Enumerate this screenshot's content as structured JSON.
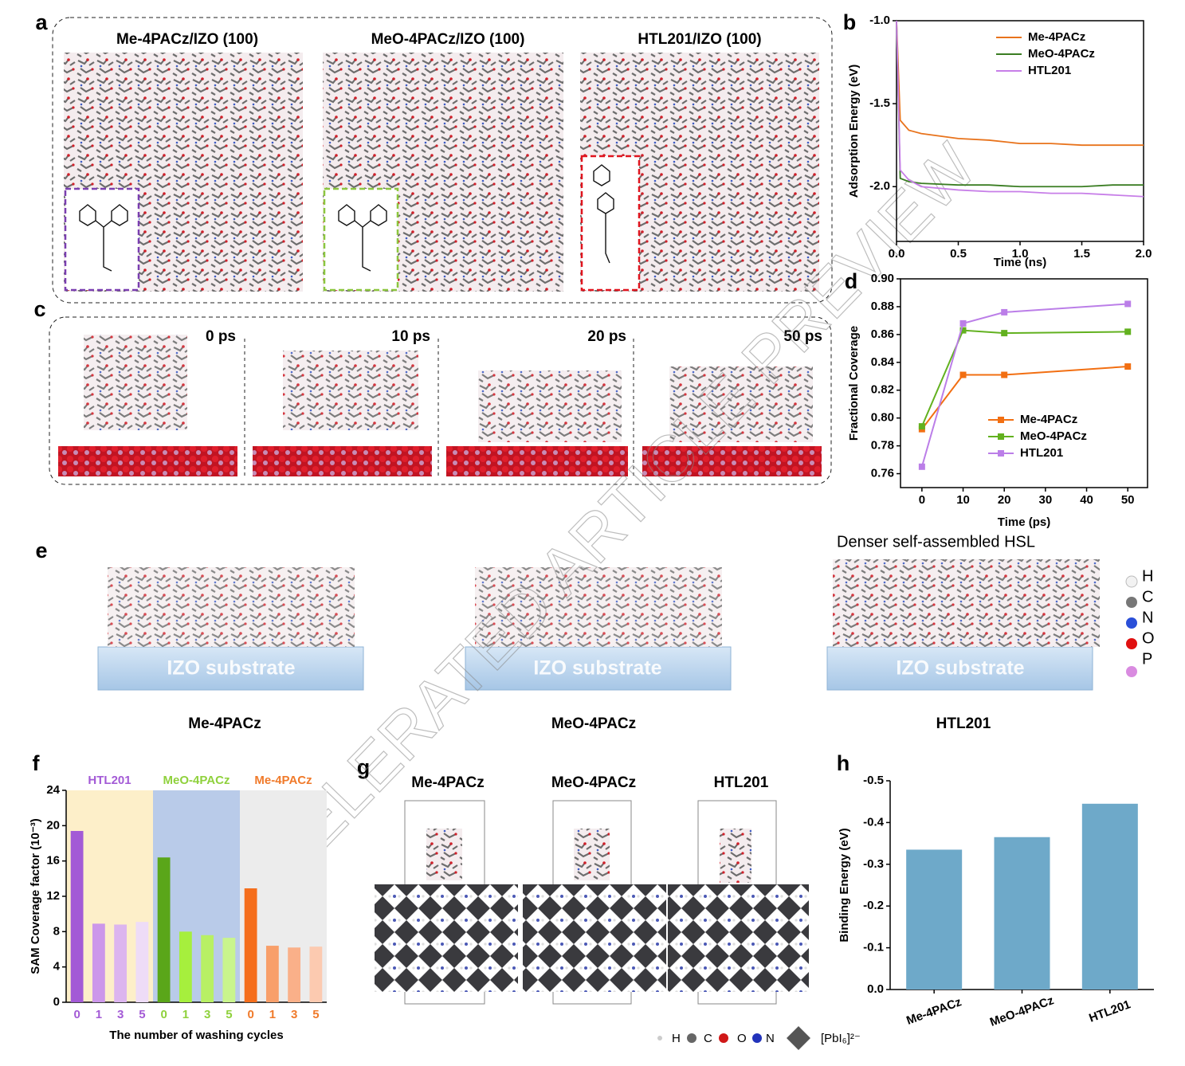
{
  "panel_labels": [
    "a",
    "b",
    "c",
    "d",
    "e",
    "f",
    "g",
    "h"
  ],
  "panel_a": {
    "titles": [
      "Me-4PACz/IZO (100)",
      "MeO-4PACz/IZO (100)",
      "HTL201/IZO (100)"
    ]
  },
  "panel_c": {
    "times": [
      "0 ps",
      "10 ps",
      "20 ps",
      "50 ps"
    ]
  },
  "panel_e": {
    "caption": "Denser self-assembled HSL",
    "substrates": [
      "IZO substrate",
      "IZO substrate",
      "IZO substrate"
    ],
    "names": [
      "Me-4PACz",
      "MeO-4PACz",
      "HTL201"
    ],
    "elements": [
      "H",
      "C",
      "N",
      "O",
      "P"
    ]
  },
  "panel_g": {
    "titles": [
      "Me-4PACz",
      "MeO-4PACz",
      "HTL201"
    ],
    "legend": [
      "H",
      "C",
      "O",
      "N",
      "[PbI₆]²⁻"
    ]
  },
  "watermark": "ACCELERATED ARTICLE PREVIEW",
  "chart_data": [
    {
      "type": "line",
      "xlabel": "Time (ns)",
      "ylabel": "Adsorption Energy (eV)",
      "x": [
        0,
        0.03,
        0.1,
        0.2,
        0.5,
        0.75,
        1.0,
        1.25,
        1.5,
        1.75,
        2.0
      ],
      "series": [
        {
          "name": "Me-4PACz",
          "color": "#e8731c",
          "values": [
            -1.0,
            -1.6,
            -1.66,
            -1.68,
            -1.71,
            -1.72,
            -1.74,
            -1.74,
            -1.75,
            -1.75,
            -1.75
          ]
        },
        {
          "name": "MeO-4PACz",
          "color": "#3a7d22",
          "values": [
            -1.0,
            -1.95,
            -1.97,
            -1.98,
            -1.99,
            -1.99,
            -2.0,
            -2.0,
            -2.0,
            -1.99,
            -1.99
          ]
        },
        {
          "name": "HTL201",
          "color": "#c77ee8",
          "values": [
            -1.0,
            -1.9,
            -1.96,
            -2.0,
            -2.02,
            -2.03,
            -2.03,
            -2.04,
            -2.04,
            -2.05,
            -2.06
          ]
        }
      ],
      "xlim": [
        0,
        2
      ],
      "ylim": [
        -2.33,
        -1.0
      ],
      "xticks": [
        {
          "value": 0,
          "label": "0.0"
        },
        0.5,
        {
          "value": 1,
          "label": "1.0"
        },
        1.5,
        {
          "value": 2,
          "label": "2.0"
        }
      ],
      "yticks": [
        {
          "value": -1,
          "label": "-1.0"
        },
        -1.5,
        {
          "value": -2,
          "label": "-2.0"
        }
      ],
      "legend": "top-right",
      "markers": false
    },
    {
      "type": "line",
      "xlabel": "Time (ps)",
      "ylabel": "Fractional Coverage",
      "x": [
        0,
        10,
        20,
        50
      ],
      "series": [
        {
          "name": "Me-4PACz",
          "color": "#f26f12",
          "values": [
            0.792,
            0.831,
            0.831,
            0.837
          ]
        },
        {
          "name": "MeO-4PACz",
          "color": "#62b11f",
          "values": [
            0.794,
            0.863,
            0.861,
            0.862
          ]
        },
        {
          "name": "HTL201",
          "color": "#bb7ee8",
          "values": [
            0.765,
            0.868,
            0.876,
            0.882
          ]
        }
      ],
      "xlim": [
        -5.2,
        54.8
      ],
      "ylim": [
        0.75,
        0.9
      ],
      "xticks": [
        0,
        10,
        20,
        30,
        40,
        50
      ],
      "yticks": [
        0.76,
        0.78,
        {
          "value": 0.8,
          "label": "0.80"
        },
        0.82,
        0.84,
        0.86,
        0.88,
        {
          "value": 0.9,
          "label": "0.90"
        }
      ],
      "legend": "bottom-right",
      "markers": true
    },
    {
      "type": "grouped_bar",
      "xlabel": "The number of washing cycles",
      "ylabel": "SAM Coverage factor (10⁻³)",
      "ylim": [
        0,
        24
      ],
      "yticks": [
        0,
        4,
        8,
        12,
        16,
        20,
        24
      ],
      "groups": [
        {
          "name": "HTL201",
          "label_color": "#a35ad6",
          "background": "#fdefc9",
          "categories": [
            "0",
            "1",
            "3",
            "5"
          ],
          "values": [
            19.4,
            8.9,
            8.8,
            9.1
          ],
          "colors": [
            "#a35ad6",
            "#cc97ea",
            "#dcb5ef",
            "#eedcf7"
          ]
        },
        {
          "name": "MeO-4PACz",
          "label_color": "#8fd13c",
          "background": "#b9cbe9",
          "categories": [
            "0",
            "1",
            "3",
            "5"
          ],
          "values": [
            16.4,
            8.0,
            7.6,
            7.3
          ],
          "colors": [
            "#5aa619",
            "#a6ef3d",
            "#b8f064",
            "#c9f58d"
          ]
        },
        {
          "name": "Me-4PACz",
          "label_color": "#f07a2a",
          "background": "#ececec",
          "categories": [
            "0",
            "1",
            "3",
            "5"
          ],
          "values": [
            12.9,
            6.4,
            6.2,
            6.3
          ],
          "colors": [
            "#f56e1c",
            "#f89f6a",
            "#fab089",
            "#fccab0"
          ]
        }
      ]
    },
    {
      "type": "bar",
      "ylabel": "Binding Energy (eV)",
      "categories": [
        "Me-4PACz",
        "MeO-4PACz",
        "HTL201"
      ],
      "values": [
        -0.335,
        -0.365,
        -0.445
      ],
      "color": "#6ea9c9",
      "ylim": [
        0,
        -0.5
      ],
      "yticks": [
        {
          "value": 0,
          "label": "0.0"
        },
        -0.1,
        -0.2,
        -0.3,
        -0.4,
        -0.5
      ]
    }
  ]
}
